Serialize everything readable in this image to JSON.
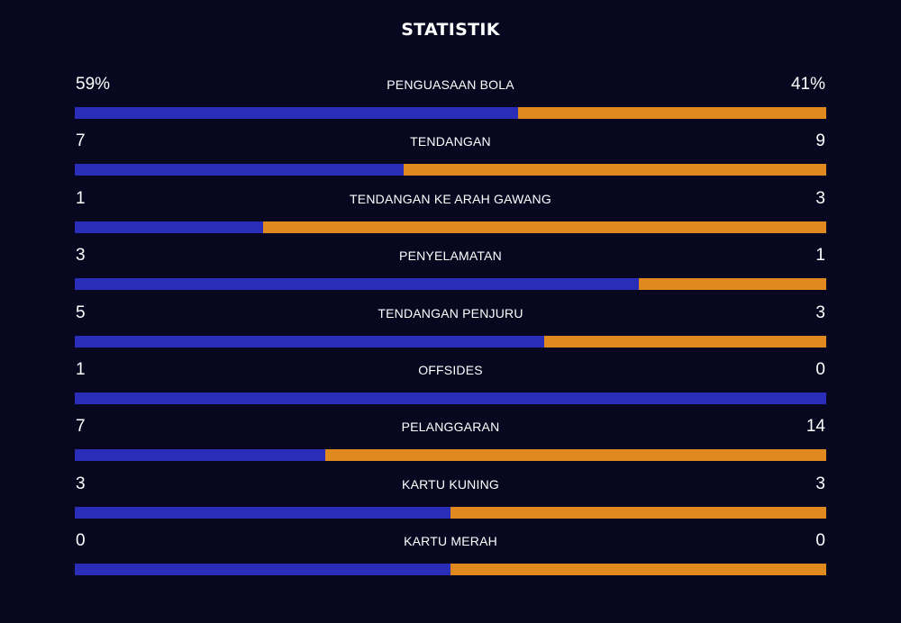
{
  "title": "STATISTIK",
  "colors": {
    "background": "#080720",
    "home": "#2a2db8",
    "away": "#e0891e"
  },
  "stats": [
    {
      "label": "PENGUASAAN BOLA",
      "home": "59%",
      "away": "41%",
      "home_share": 0.59
    },
    {
      "label": "TENDANGAN",
      "home": "7",
      "away": "9",
      "home_share": 0.4375
    },
    {
      "label": "TENDANGAN KE ARAH GAWANG",
      "home": "1",
      "away": "3",
      "home_share": 0.25
    },
    {
      "label": "PENYELAMATAN",
      "home": "3",
      "away": "1",
      "home_share": 0.75
    },
    {
      "label": "TENDANGAN PENJURU",
      "home": "5",
      "away": "3",
      "home_share": 0.625
    },
    {
      "label": "OFFSIDES",
      "home": "1",
      "away": "0",
      "home_share": 1.0
    },
    {
      "label": "PELANGGARAN",
      "home": "7",
      "away": "14",
      "home_share": 0.3333
    },
    {
      "label": "KARTU KUNING",
      "home": "3",
      "away": "3",
      "home_share": 0.5
    },
    {
      "label": "KARTU MERAH",
      "home": "0",
      "away": "0",
      "home_share": 0.5
    }
  ]
}
